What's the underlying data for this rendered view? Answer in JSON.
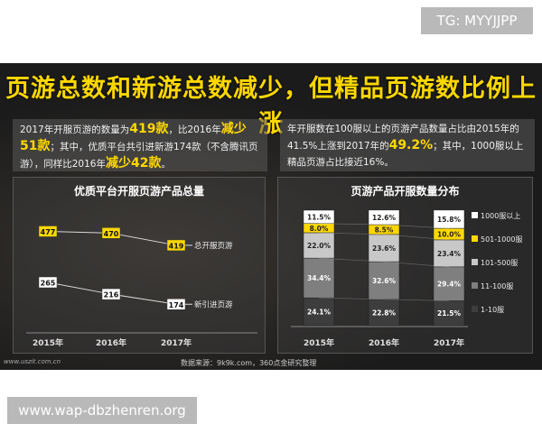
{
  "watermark_tg": "TG: MYYJJPP",
  "watermark_site": "www.wap-dbzhenren.org",
  "title": "页游总数和新游总数减少，但精品页游数比例上涨",
  "info_left": {
    "p1": "2017年开服页游的数量为",
    "v1": "419款",
    "p2": "，比2016年",
    "v2": "减少",
    "v3": "51款",
    "p3": "；其中，优质平台共引进新游174款（不含腾讯页游），同样比2016年",
    "v4": "减少42款",
    "p4": "。"
  },
  "info_right": {
    "p1": "年开服数在100服以上的页游产品数量占比由2015年的41.5%上涨到2017年的",
    "v1": "49.2%",
    "p2": "；其中，1000服以上精品页游占比接近16%。"
  },
  "source": "数据来源：9k9k.com，360点金研究整理",
  "site_url": "www.uszit.com.cn",
  "chart_data": [
    {
      "type": "line",
      "title": "优质平台开服页游产品总量",
      "categories": [
        "2015年",
        "2016年",
        "2017年"
      ],
      "series": [
        {
          "name": "总开服页游",
          "values": [
            477,
            470,
            419
          ],
          "color": "#ffd800"
        },
        {
          "name": "新引进页游",
          "values": [
            265,
            216,
            174
          ],
          "color": "#ffffff"
        }
      ],
      "ylim": [
        100,
        550
      ],
      "grid": false
    },
    {
      "type": "bar",
      "stacked": true,
      "title": "页游产品开服数量分布",
      "categories": [
        "2015年",
        "2016年",
        "2017年"
      ],
      "series": [
        {
          "name": "1-10服",
          "values": [
            24.1,
            22.8,
            21.5
          ],
          "color": "#3d3d3d"
        },
        {
          "name": "11-100服",
          "values": [
            34.4,
            32.6,
            29.4
          ],
          "color": "#7f7f7f"
        },
        {
          "name": "101-500服",
          "values": [
            22.0,
            23.6,
            23.4
          ],
          "color": "#c8c8c8"
        },
        {
          "name": "501-1000服",
          "values": [
            8.0,
            8.5,
            10.0
          ],
          "color": "#ffd800"
        },
        {
          "name": "1000服以上",
          "values": [
            11.5,
            12.6,
            15.8
          ],
          "color": "#ffffff"
        }
      ],
      "ylim": [
        0,
        100
      ],
      "legend": "right"
    }
  ]
}
